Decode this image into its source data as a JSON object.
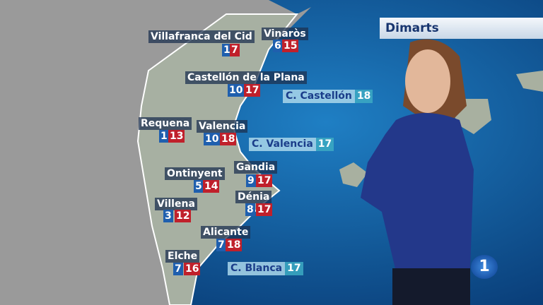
{
  "day": "Dimarts",
  "cities": [
    {
      "name": "Villafranca del Cid",
      "min": 1,
      "max": 7
    },
    {
      "name": "Vinaròs",
      "min": 6,
      "max": 15
    },
    {
      "name": "Castellón de la Plana",
      "min": 10,
      "max": 17
    },
    {
      "name": "Requena",
      "min": 1,
      "max": 13
    },
    {
      "name": "Valencia",
      "min": 10,
      "max": 18
    },
    {
      "name": "Ontinyent",
      "min": 5,
      "max": 14
    },
    {
      "name": "Gandia",
      "min": 9,
      "max": 17
    },
    {
      "name": "Villena",
      "min": 3,
      "max": 12
    },
    {
      "name": "Dénia",
      "min": 8,
      "max": 17
    },
    {
      "name": "Alicante",
      "min": 7,
      "max": 18
    },
    {
      "name": "Elche",
      "min": 7,
      "max": 16
    }
  ],
  "sea": [
    {
      "name": "C. Castellón",
      "temp": 18
    },
    {
      "name": "C. Valencia",
      "temp": 17
    },
    {
      "name": "C. Blanca",
      "temp": 17
    }
  ],
  "channel": "1"
}
